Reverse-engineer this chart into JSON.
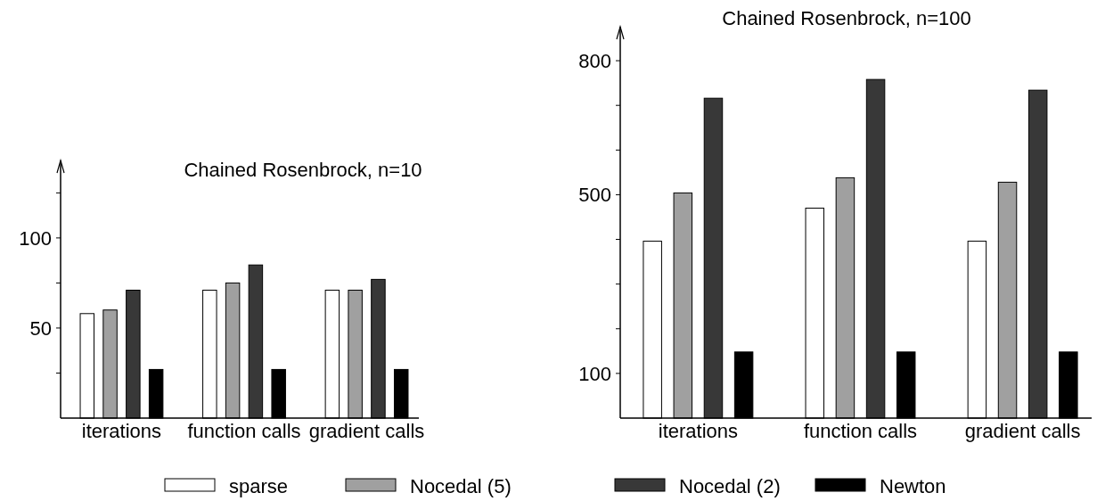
{
  "chart_data": [
    {
      "type": "bar",
      "title": "Chained Rosenbrock, n=10",
      "categories": [
        "iterations",
        "function calls",
        "gradient calls"
      ],
      "ylim": [
        0,
        143
      ],
      "yticks": [
        {
          "value": 25,
          "label": null
        },
        50,
        {
          "value": 75,
          "label": null
        },
        100,
        {
          "value": 125,
          "label": null
        }
      ],
      "grid": false,
      "legend": "bottom",
      "series": [
        {
          "name": "sparse",
          "color": "#ffffff",
          "values": [
            58,
            71,
            71
          ]
        },
        {
          "name": "Nocedal (5)",
          "color": "#a0a0a0",
          "values": [
            60,
            75,
            71
          ]
        },
        {
          "name": "Nocedal (2)",
          "color": "#383838",
          "values": [
            71,
            85,
            77
          ]
        },
        {
          "name": "Newton",
          "color": "#000000",
          "values": [
            27,
            27,
            27
          ]
        }
      ]
    },
    {
      "type": "bar",
      "title": "Chained Rosenbrock, n=100",
      "categories": [
        "iterations",
        "function calls",
        "gradient calls"
      ],
      "ylim": [
        0,
        876
      ],
      "yticks": [
        100,
        {
          "value": 200,
          "label": null
        },
        {
          "value": 300,
          "label": null
        },
        {
          "value": 400,
          "label": null
        },
        500,
        {
          "value": 600,
          "label": null
        },
        {
          "value": 700,
          "label": null
        },
        800
      ],
      "grid": false,
      "series": [
        {
          "color": "#ffffff",
          "values": [
            396,
            470,
            396
          ]
        },
        {
          "color": "#a0a0a0",
          "values": [
            504,
            538,
            528
          ]
        },
        {
          "color": "#383838",
          "values": [
            716,
            758,
            734
          ]
        },
        {
          "color": "#000000",
          "values": [
            148,
            148,
            148
          ]
        }
      ]
    }
  ]
}
